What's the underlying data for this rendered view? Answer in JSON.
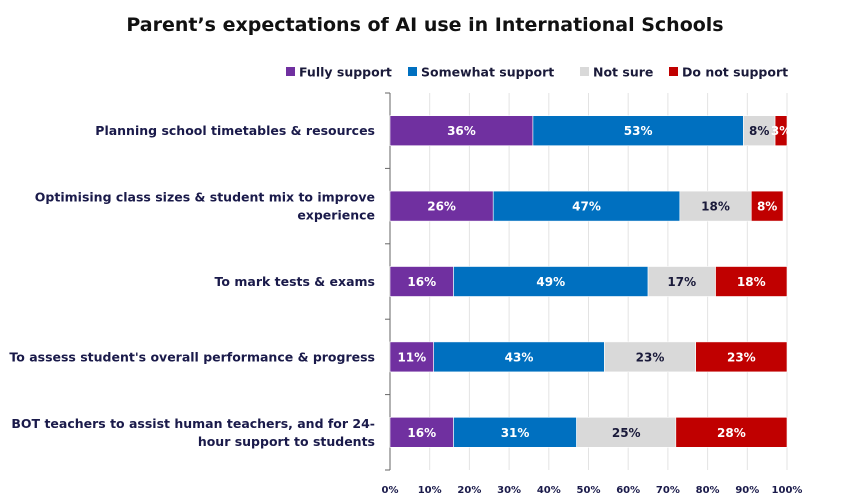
{
  "chart_data": {
    "type": "bar",
    "orientation": "horizontal",
    "stacked": true,
    "title": "Parent’s expectations of AI use in International Schools",
    "legend_position": "top-right",
    "categories": [
      "Planning school timetables & resources",
      "Optimising class sizes & student mix to improve experience",
      "To mark tests & exams",
      "To assess student's overall performance & progress",
      "BOT teachers to assist human teachers, and for 24-hour support to students"
    ],
    "category_lines": [
      [
        "Planning school timetables & resources"
      ],
      [
        "Optimising class sizes & student mix to improve",
        "experience"
      ],
      [
        "To mark tests & exams"
      ],
      [
        "To assess student's overall performance & progress"
      ],
      [
        "BOT teachers to assist human teachers, and for 24-",
        "hour support to students"
      ]
    ],
    "series": [
      {
        "name": "Fully support",
        "color": "#7030a0",
        "label_color": "#ffffff",
        "values": [
          36,
          26,
          16,
          11,
          16
        ]
      },
      {
        "name": "Somewhat support",
        "color": "#0070c0",
        "label_color": "#ffffff",
        "values": [
          53,
          47,
          49,
          43,
          31
        ]
      },
      {
        "name": "Not sure",
        "color": "#d9d9d9",
        "label_color": "#1a1a3a",
        "values": [
          8,
          18,
          17,
          23,
          25
        ]
      },
      {
        "name": "Do not support",
        "color": "#c00000",
        "label_color": "#ffffff",
        "values": [
          3,
          8,
          18,
          23,
          28
        ]
      }
    ],
    "xlim": [
      0,
      100
    ],
    "x_ticks": [
      "0%",
      "10%",
      "20%",
      "30%",
      "40%",
      "50%",
      "60%",
      "70%",
      "80%",
      "90%",
      "100%"
    ],
    "value_suffix": "%",
    "grid": true
  }
}
